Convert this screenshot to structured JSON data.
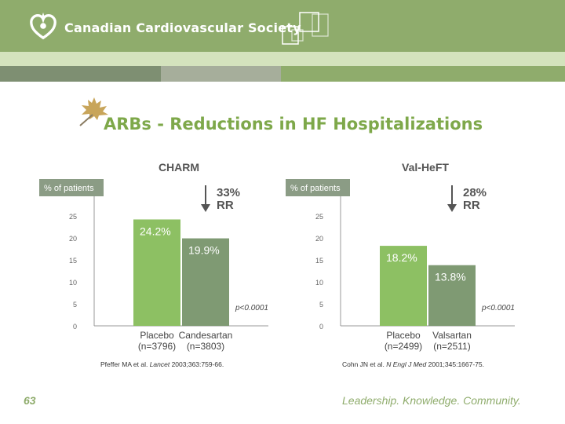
{
  "header": {
    "org_name": "Canadian Cardiovascular Society"
  },
  "slide": {
    "title": "ARBs - Reductions in HF Hospitalizations",
    "number": "63",
    "tagline": "Leadership. Knowledge. Community."
  },
  "colors": {
    "header_green": "#8fac6c",
    "placebo_bar": "#8dc063",
    "treatment_bar": "#7f9a73",
    "axis_box": "#8b9c85",
    "title_green": "#7ea84a"
  },
  "chart_data": [
    {
      "type": "bar",
      "title": "CHARM",
      "ylabel": "% of patients",
      "ylim": [
        0,
        25
      ],
      "yticks": [
        "25",
        "20",
        "15",
        "10",
        "5",
        "0"
      ],
      "yticks_values": [
        25,
        20,
        15,
        10,
        5,
        0
      ],
      "categories": [
        "Placebo",
        "Candesartan"
      ],
      "n_labels": [
        "(n=3796)",
        "(n=3803)"
      ],
      "values": [
        24.2,
        19.9
      ],
      "value_labels": [
        "24.2%",
        "19.9%"
      ],
      "rr_pct": "33%",
      "rr_label": "RR",
      "p_value": "p<0.0001"
    },
    {
      "type": "bar",
      "title": "Val-HeFT",
      "ylabel": "% of patients",
      "ylim": [
        0,
        25
      ],
      "yticks": [
        "25",
        "20",
        "15",
        "10",
        "5",
        "0"
      ],
      "yticks_values": [
        25,
        20,
        15,
        10,
        5,
        0
      ],
      "categories": [
        "Placebo",
        "Valsartan"
      ],
      "n_labels": [
        "(n=2499)",
        "(n=2511)"
      ],
      "values": [
        18.2,
        13.8
      ],
      "value_labels": [
        "18.2%",
        "13.8%"
      ],
      "rr_pct": "28%",
      "rr_label": "RR",
      "p_value": "p<0.0001"
    }
  ],
  "citations": [
    {
      "authors": "Pfeffer MA et al. ",
      "journal": "Lancet",
      "details": " 2003;363:759-66."
    },
    {
      "authors": "Cohn JN et al. ",
      "journal": "N Engl J Med",
      "details": " 2001;345:1667-75."
    }
  ]
}
